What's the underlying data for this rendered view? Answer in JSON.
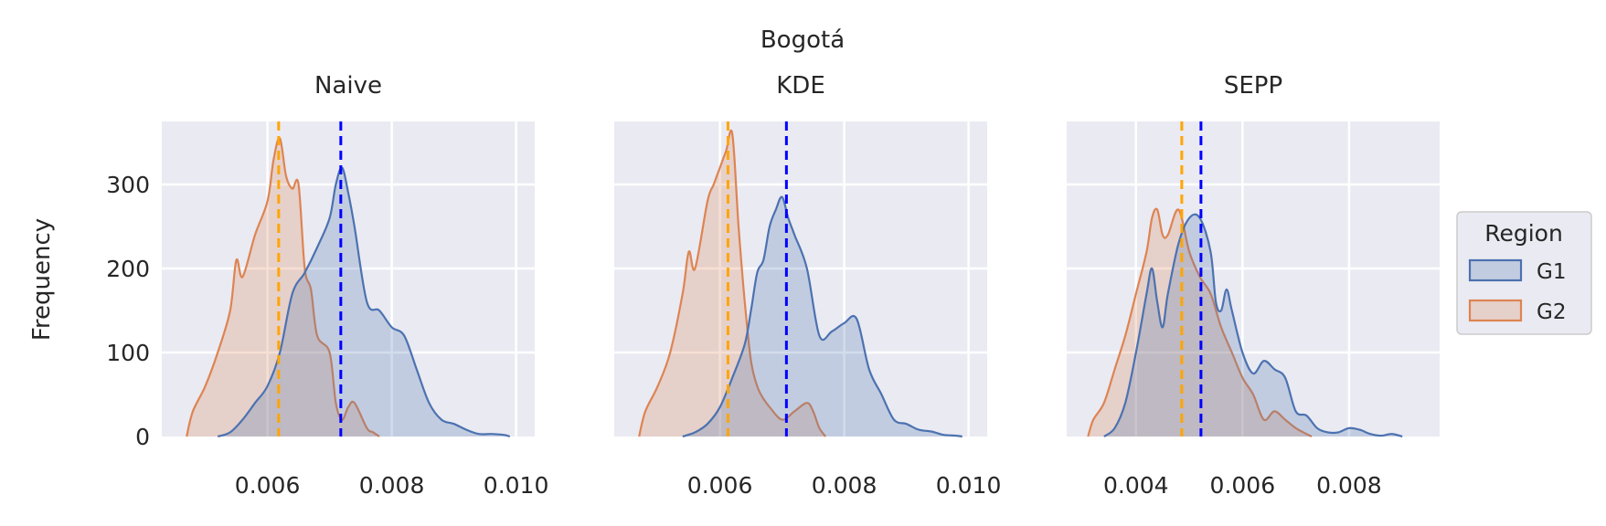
{
  "suptitle": "Bogotá",
  "ylabel": "Frequency",
  "legend": {
    "title": "Region",
    "entries": [
      {
        "label": "G1",
        "color": "#4c72b0"
      },
      {
        "label": "G2",
        "color": "#dd8452"
      }
    ]
  },
  "chart_data": [
    {
      "type": "area",
      "title": "Naive",
      "xlabel": "",
      "ylabel": "Frequency",
      "xlim": [
        0.0043,
        0.0103
      ],
      "ylim": [
        0,
        375
      ],
      "xticks": [
        0.006,
        0.008,
        0.01
      ],
      "xtick_labels": [
        "0.006",
        "0.008",
        "0.010"
      ],
      "yticks": [
        0,
        100,
        200,
        300
      ],
      "ytick_labels": [
        "0",
        "100",
        "200",
        "300"
      ],
      "vlines": [
        {
          "x": 0.00618,
          "color": "#ffa500"
        },
        {
          "x": 0.00718,
          "color": "#0000ff"
        }
      ],
      "series": [
        {
          "name": "G1",
          "color": "#4c72b0",
          "x": [
            0.0052,
            0.0054,
            0.0056,
            0.0058,
            0.006,
            0.0062,
            0.0064,
            0.0066,
            0.0068,
            0.007,
            0.0071,
            0.0072,
            0.0073,
            0.0074,
            0.0076,
            0.0078,
            0.008,
            0.0082,
            0.0084,
            0.0086,
            0.0088,
            0.009,
            0.0092,
            0.0094,
            0.0096,
            0.0098,
            0.0099
          ],
          "y": [
            0,
            5,
            20,
            40,
            60,
            100,
            170,
            195,
            225,
            260,
            300,
            320,
            290,
            250,
            160,
            150,
            130,
            120,
            80,
            40,
            20,
            15,
            8,
            3,
            3,
            2,
            0
          ]
        },
        {
          "name": "G2",
          "color": "#dd8452",
          "x": [
            0.0047,
            0.0048,
            0.005,
            0.0052,
            0.0054,
            0.0055,
            0.0056,
            0.0058,
            0.006,
            0.0061,
            0.0062,
            0.0063,
            0.0064,
            0.0065,
            0.0066,
            0.0067,
            0.0068,
            0.007,
            0.0071,
            0.0072,
            0.0073,
            0.0074,
            0.0076,
            0.0077,
            0.0078
          ],
          "y": [
            0,
            30,
            60,
            100,
            150,
            210,
            190,
            240,
            280,
            330,
            355,
            310,
            295,
            300,
            200,
            175,
            120,
            100,
            40,
            20,
            35,
            40,
            10,
            5,
            0
          ]
        }
      ]
    },
    {
      "type": "area",
      "title": "KDE",
      "xlabel": "",
      "ylabel": "",
      "xlim": [
        0.0043,
        0.0103
      ],
      "ylim": [
        0,
        375
      ],
      "xticks": [
        0.006,
        0.008,
        0.01
      ],
      "xtick_labels": [
        "0.006",
        "0.008",
        "0.010"
      ],
      "yticks": [],
      "ytick_labels": [],
      "vlines": [
        {
          "x": 0.00613,
          "color": "#ffa500"
        },
        {
          "x": 0.00707,
          "color": "#0000ff"
        }
      ],
      "series": [
        {
          "name": "G1",
          "color": "#4c72b0",
          "x": [
            0.0054,
            0.0056,
            0.0058,
            0.006,
            0.0062,
            0.0064,
            0.0065,
            0.0066,
            0.0067,
            0.0068,
            0.0069,
            0.007,
            0.0071,
            0.0072,
            0.0074,
            0.0076,
            0.0078,
            0.008,
            0.0082,
            0.0084,
            0.0086,
            0.0088,
            0.009,
            0.0092,
            0.0094,
            0.0096,
            0.0098,
            0.0099
          ],
          "y": [
            0,
            5,
            15,
            35,
            70,
            110,
            150,
            195,
            210,
            250,
            270,
            285,
            260,
            240,
            200,
            120,
            125,
            135,
            140,
            80,
            50,
            20,
            15,
            8,
            6,
            2,
            1,
            0
          ]
        },
        {
          "name": "G2",
          "color": "#dd8452",
          "x": [
            0.0047,
            0.0048,
            0.005,
            0.0052,
            0.0054,
            0.0055,
            0.0056,
            0.0058,
            0.0059,
            0.006,
            0.0061,
            0.0062,
            0.0063,
            0.0064,
            0.0065,
            0.0066,
            0.0067,
            0.0068,
            0.007,
            0.0072,
            0.0074,
            0.0075,
            0.0076,
            0.0077
          ],
          "y": [
            0,
            30,
            60,
            100,
            170,
            220,
            200,
            280,
            300,
            320,
            340,
            360,
            250,
            160,
            90,
            60,
            45,
            35,
            20,
            30,
            40,
            30,
            10,
            0
          ]
        }
      ]
    },
    {
      "type": "area",
      "title": "SEPP",
      "xlabel": "",
      "ylabel": "",
      "xlim": [
        0.0027,
        0.0097
      ],
      "ylim": [
        0,
        375
      ],
      "xticks": [
        0.004,
        0.006,
        0.008
      ],
      "xtick_labels": [
        "0.004",
        "0.006",
        "0.008"
      ],
      "yticks": [],
      "ytick_labels": [],
      "vlines": [
        {
          "x": 0.00486,
          "color": "#ffa500"
        },
        {
          "x": 0.00522,
          "color": "#0000ff"
        }
      ],
      "series": [
        {
          "name": "G1",
          "color": "#4c72b0",
          "x": [
            0.0034,
            0.0036,
            0.0038,
            0.004,
            0.0042,
            0.0043,
            0.0044,
            0.0045,
            0.0046,
            0.0048,
            0.005,
            0.0052,
            0.0054,
            0.0055,
            0.0056,
            0.0057,
            0.0058,
            0.006,
            0.0062,
            0.0064,
            0.0066,
            0.0068,
            0.007,
            0.0072,
            0.0074,
            0.0076,
            0.0078,
            0.008,
            0.0082,
            0.0084,
            0.0086,
            0.0088,
            0.009
          ],
          "y": [
            0,
            10,
            40,
            100,
            170,
            200,
            160,
            130,
            170,
            230,
            260,
            260,
            220,
            160,
            150,
            175,
            150,
            100,
            75,
            90,
            80,
            70,
            30,
            25,
            10,
            5,
            5,
            10,
            8,
            3,
            1,
            3,
            0
          ]
        },
        {
          "name": "G2",
          "color": "#dd8452",
          "x": [
            0.0031,
            0.0032,
            0.0034,
            0.0036,
            0.0038,
            0.004,
            0.0042,
            0.0043,
            0.0044,
            0.0045,
            0.0046,
            0.0048,
            0.005,
            0.0052,
            0.0054,
            0.0056,
            0.0058,
            0.006,
            0.0062,
            0.0064,
            0.0066,
            0.0068,
            0.007,
            0.0072,
            0.0073
          ],
          "y": [
            0,
            20,
            40,
            80,
            120,
            170,
            220,
            260,
            270,
            240,
            240,
            270,
            220,
            190,
            170,
            130,
            100,
            70,
            50,
            20,
            30,
            20,
            10,
            3,
            0
          ]
        }
      ]
    }
  ]
}
